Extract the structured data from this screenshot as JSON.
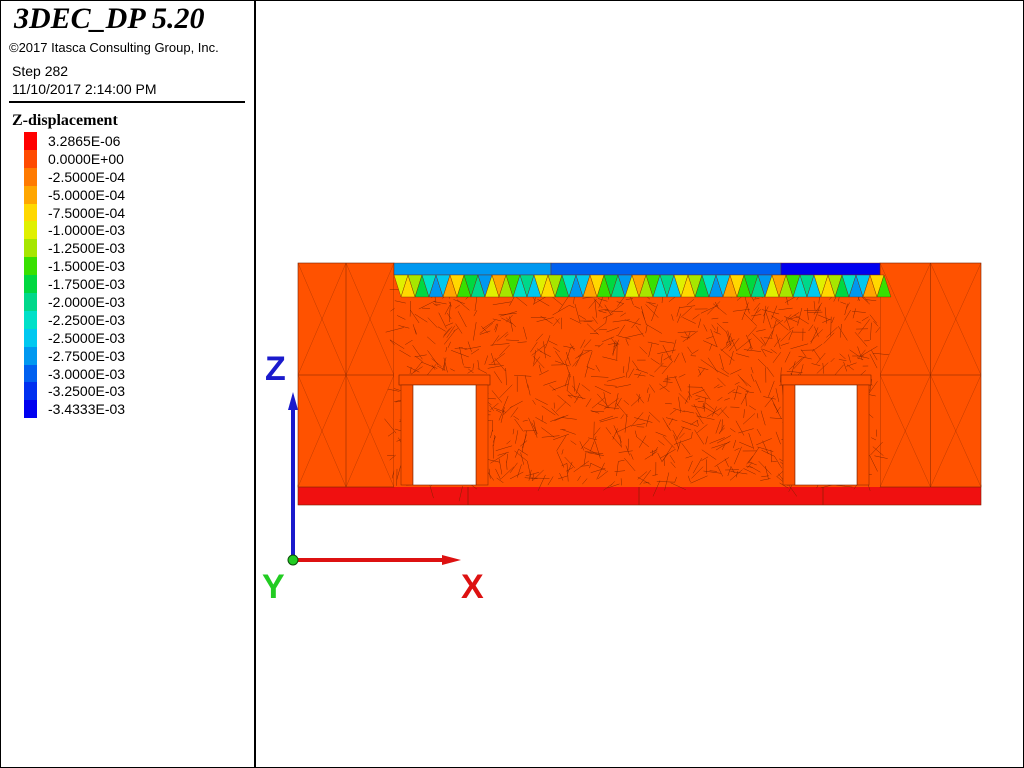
{
  "app": {
    "title": "3DEC_DP 5.20",
    "copyright": "©2017 Itasca Consulting Group, Inc.",
    "step": "Step 282",
    "timestamp": "11/10/2017 2:14:00 PM"
  },
  "legend": {
    "title": "Z-displacement",
    "entries": [
      {
        "label": "3.2865E-06",
        "color": "#ff0000"
      },
      {
        "label": "0.0000E+00",
        "color": "#ff4a00"
      },
      {
        "label": "-2.5000E-04",
        "color": "#ff7a00"
      },
      {
        "label": "-5.0000E-04",
        "color": "#ffa600"
      },
      {
        "label": "-7.5000E-04",
        "color": "#ffd800"
      },
      {
        "label": "-1.0000E-03",
        "color": "#e0f000"
      },
      {
        "label": "-1.2500E-03",
        "color": "#a6e600"
      },
      {
        "label": "-1.5000E-03",
        "color": "#38e000"
      },
      {
        "label": "-1.7500E-03",
        "color": "#00d840"
      },
      {
        "label": "-2.0000E-03",
        "color": "#00d88a"
      },
      {
        "label": "-2.2500E-03",
        "color": "#00e0c8"
      },
      {
        "label": "-2.5000E-03",
        "color": "#00c8f0"
      },
      {
        "label": "-2.7500E-03",
        "color": "#0098f0"
      },
      {
        "label": "-3.0000E-03",
        "color": "#0060f0"
      },
      {
        "label": "-3.2500E-03",
        "color": "#0030f0"
      },
      {
        "label": "-3.4333E-03",
        "color": "#0000f0"
      }
    ]
  },
  "axes": {
    "z_label": "Z",
    "y_label": "Y",
    "x_label": "X",
    "z_color": "#1a1acc",
    "y_color": "#22cc22",
    "x_color": "#dd1111"
  },
  "model": {
    "wall_color": "#ff5200",
    "mesh_line_color": "#7a2200",
    "base_color": "#f01010",
    "opening_color": "#ffffff"
  }
}
